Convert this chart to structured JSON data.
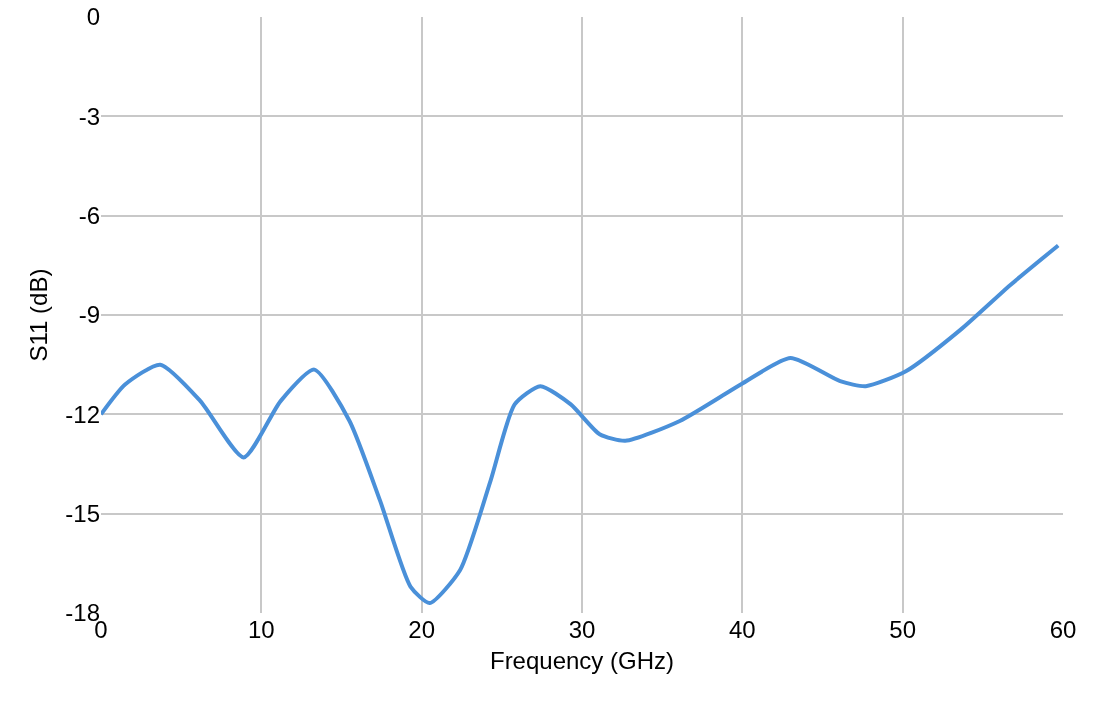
{
  "chart_data": {
    "type": "line",
    "xlabel": "Frequency (GHz)",
    "ylabel": "S11 (dB)",
    "x": [
      0,
      1.5,
      3.7,
      6.2,
      8.9,
      11.2,
      13.3,
      15.5,
      17.4,
      19.3,
      20.5,
      22.4,
      24.3,
      25.8,
      27.4,
      29.3,
      31.1,
      32.7,
      36.1,
      39.9,
      43,
      46.1,
      47.7,
      50.2,
      53.6,
      56.7,
      59.7
    ],
    "series": [
      {
        "color": "#4a90d9",
        "values": [
          -12.0,
          -11.1,
          -10.5,
          -11.6,
          -13.3,
          -11.6,
          -10.65,
          -12.2,
          -14.6,
          -17.2,
          -17.7,
          -16.7,
          -14.0,
          -11.7,
          -11.15,
          -11.7,
          -12.6,
          -12.8,
          -12.2,
          -11.1,
          -10.3,
          -11.0,
          -11.15,
          -10.7,
          -9.45,
          -8.1,
          -6.9
        ]
      }
    ],
    "xlim": [
      0,
      60
    ],
    "xticks": [
      0,
      10,
      20,
      30,
      40,
      50,
      60
    ],
    "ylim": [
      -18,
      0
    ],
    "yticks": [
      -18,
      -15,
      -12,
      -9,
      -6,
      -3,
      0
    ],
    "grid": true,
    "marker": "none",
    "line_style": "solid"
  }
}
